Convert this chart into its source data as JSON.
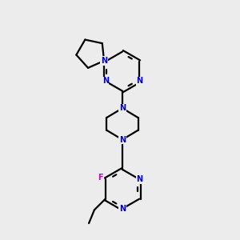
{
  "bg_color": "#ececec",
  "bond_color": "#000000",
  "N_color": "#0000cc",
  "F_color": "#cc00cc",
  "line_width": 1.6,
  "dbl_shift": 0.018,
  "figsize": [
    3.0,
    3.0
  ],
  "dpi": 100,
  "xlim": [
    0.3,
    2.2
  ],
  "ylim": [
    0.1,
    3.1
  ]
}
